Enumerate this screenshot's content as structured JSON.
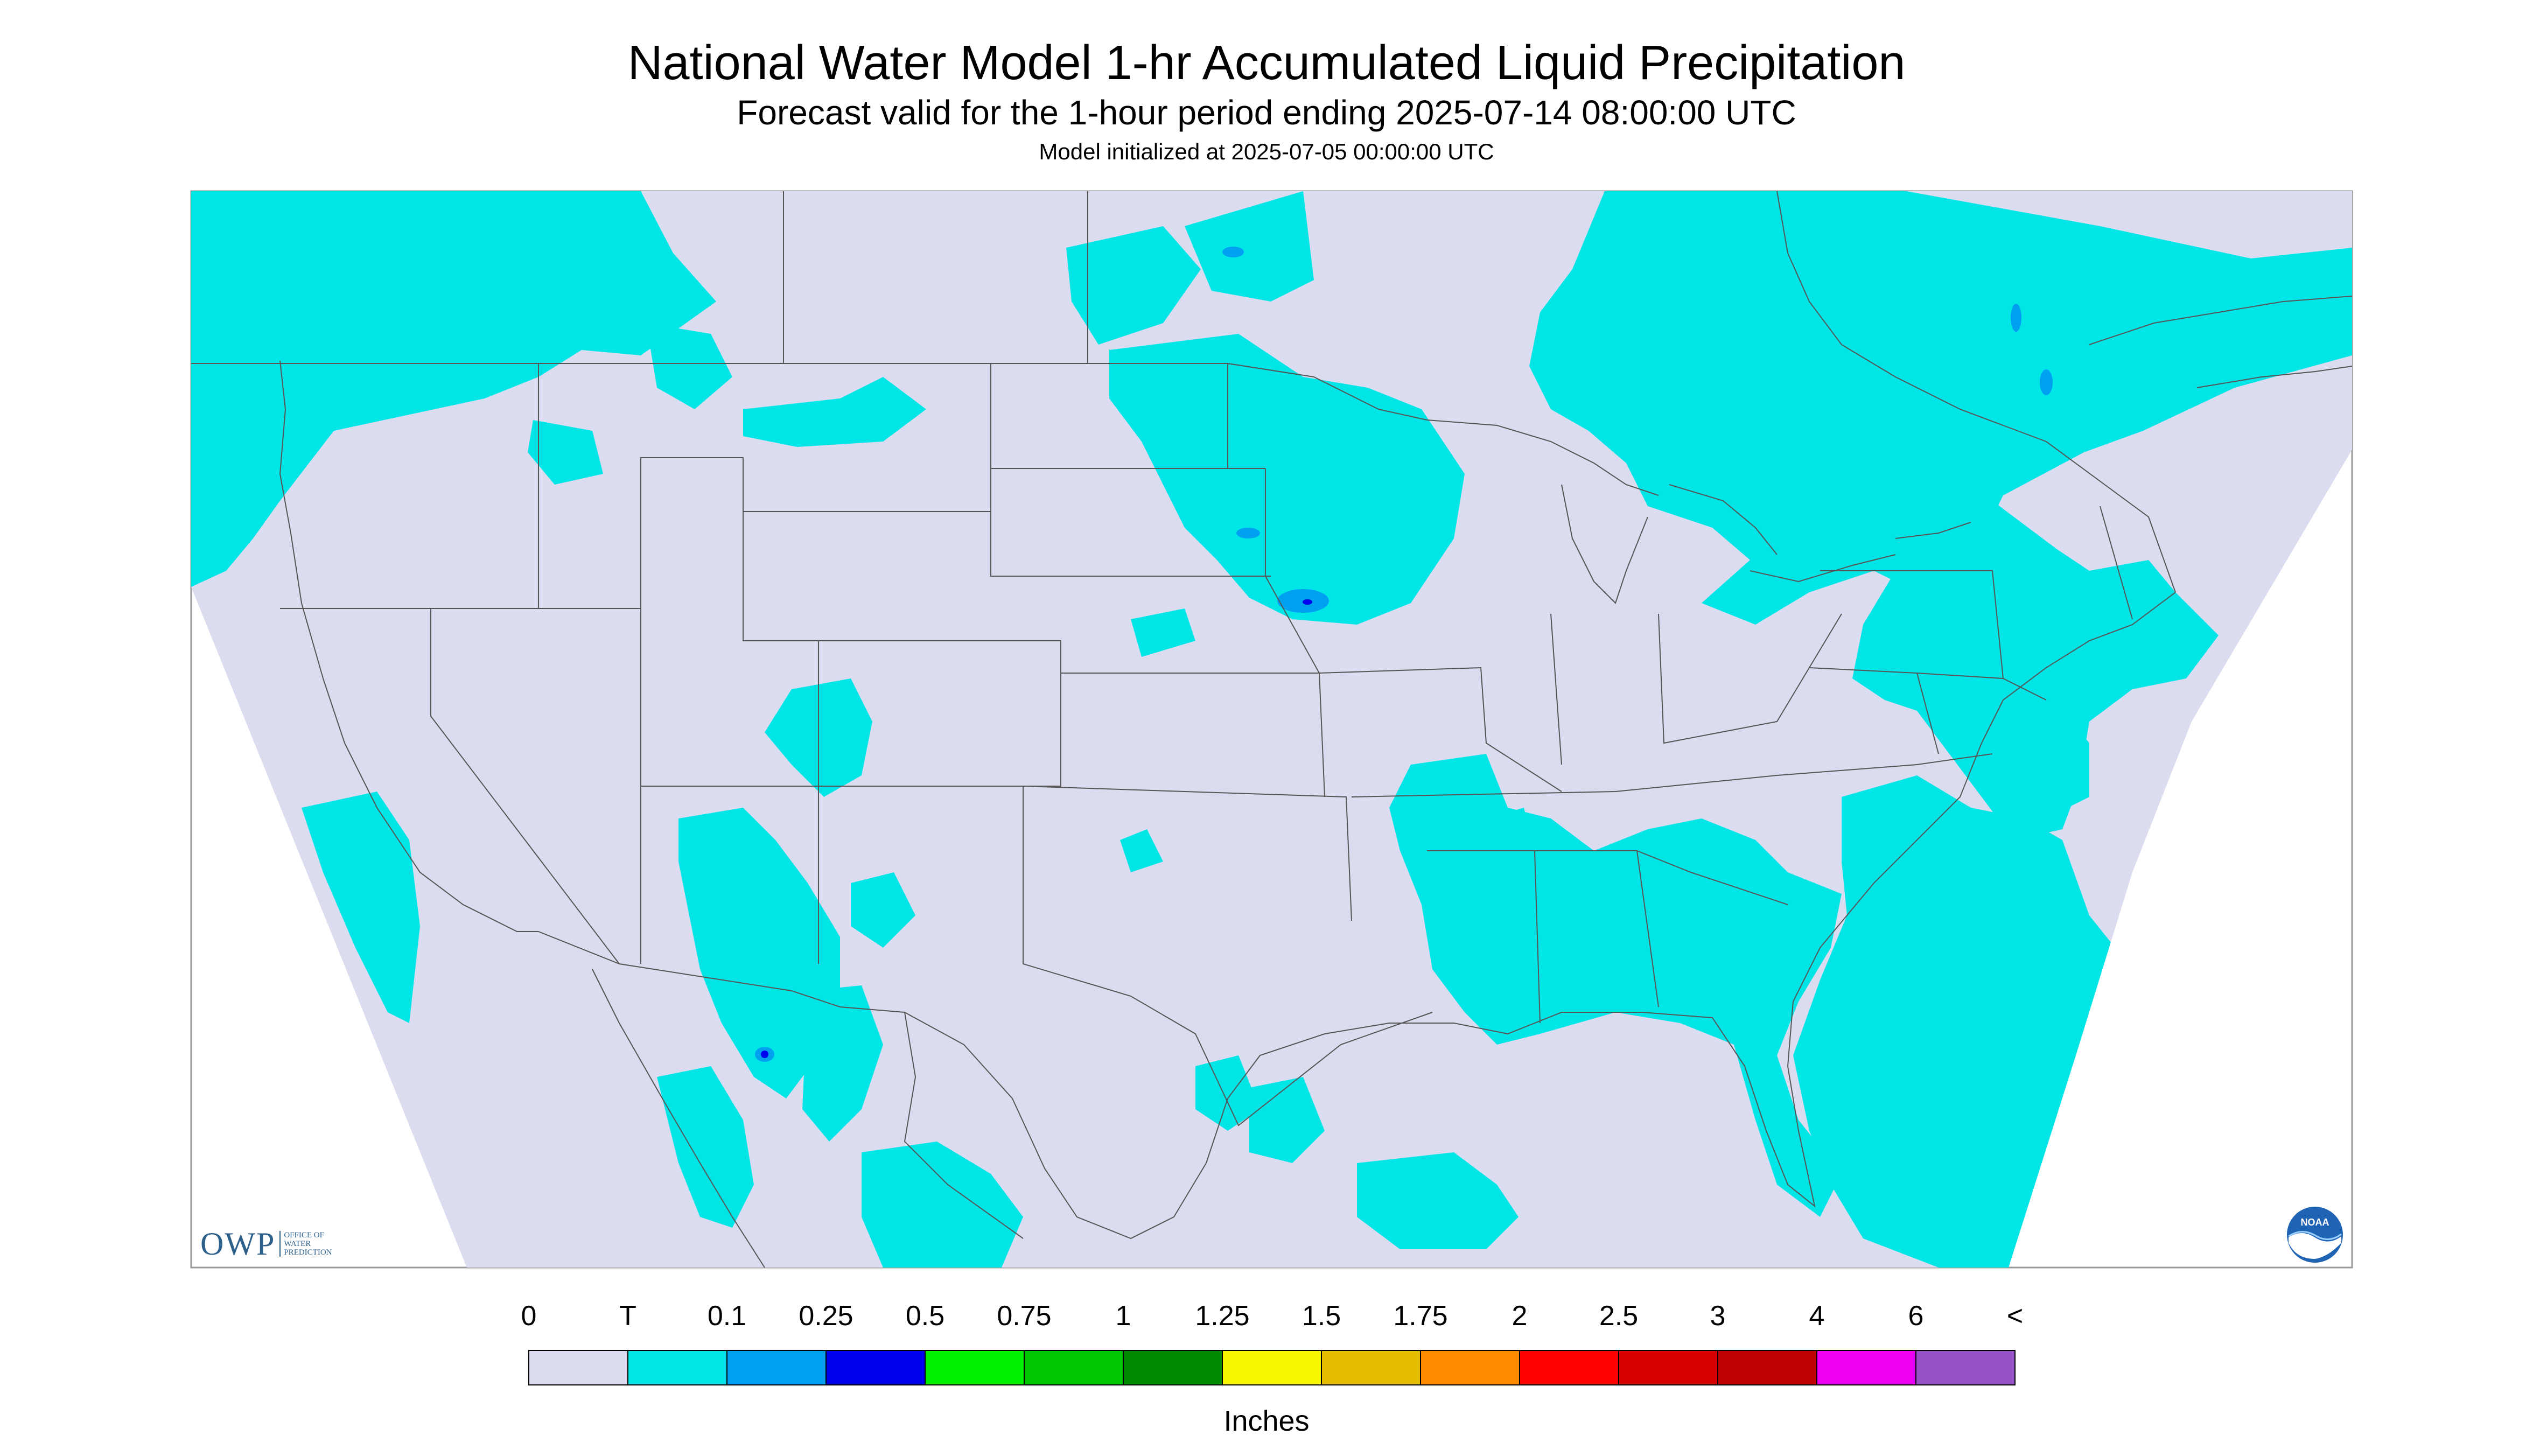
{
  "header": {
    "title": "National Water Model 1-hr Accumulated Liquid Precipitation",
    "subtitle": "Forecast valid for the 1-hour period ending 2025-07-14 08:00:00 UTC",
    "init": "Model initialized at 2025-07-05 00:00:00 UTC"
  },
  "colors": {
    "background_no_precip": "#dcdcf0",
    "trace": "#00e6e6",
    "boundaries": "#555555"
  },
  "legend": {
    "units": "Inches",
    "labels": [
      "0",
      "T",
      "0.1",
      "0.25",
      "0.5",
      "0.75",
      "1",
      "1.25",
      "1.5",
      "1.75",
      "2",
      "2.5",
      "3",
      "4",
      "6",
      "<"
    ],
    "colors": [
      "#dcdcf0",
      "#00e6e6",
      "#00a0f0",
      "#0000f0",
      "#00f000",
      "#00c800",
      "#008c00",
      "#f8f800",
      "#e6be00",
      "#ff8c00",
      "#ff0000",
      "#d60000",
      "#be0000",
      "#f000f0",
      "#9650c8"
    ]
  },
  "logos": {
    "owp": {
      "mark": "OWP",
      "lines": [
        "OFFICE OF",
        "WATER",
        "PREDICTION"
      ]
    },
    "noaa": {
      "text": "NOAA"
    }
  }
}
